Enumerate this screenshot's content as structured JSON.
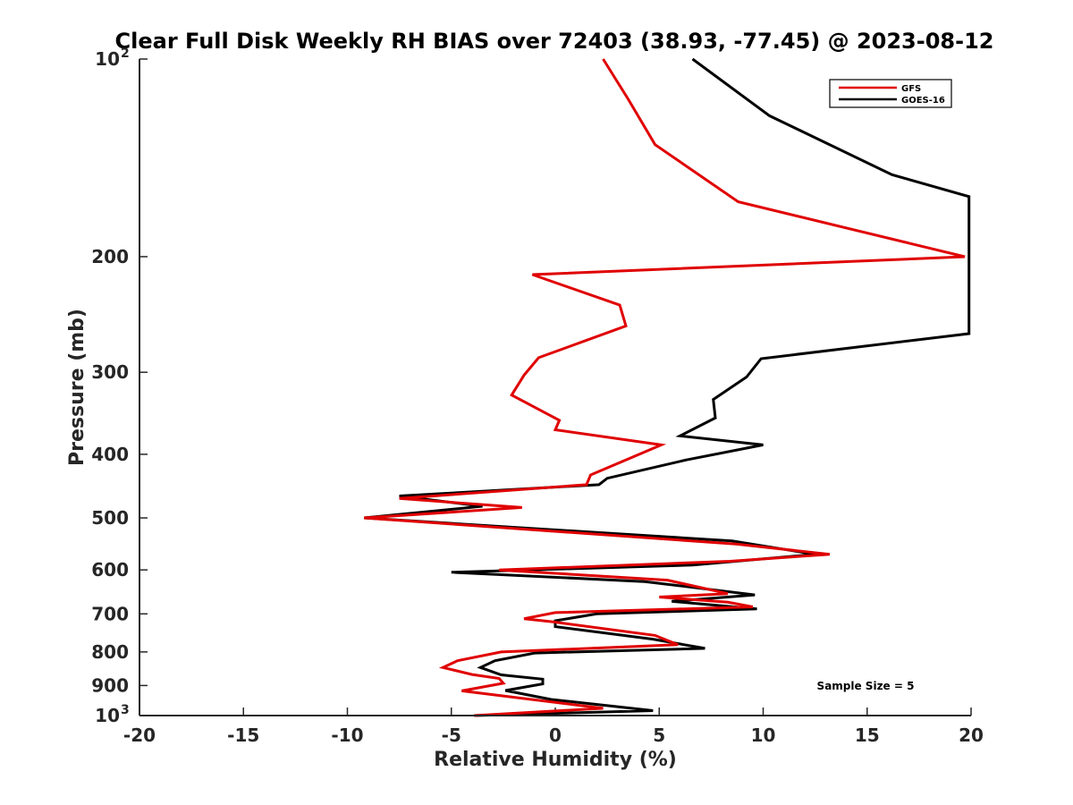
{
  "chart_data": {
    "type": "line",
    "title": "Clear Full Disk Weekly RH BIAS over 72403 (38.93, -77.45) @ 2023-08-12",
    "xlabel": "Relative Humidity (%)",
    "ylabel": "Pressure (mb)",
    "xlim": [
      -20,
      20
    ],
    "ylim": [
      100,
      1000
    ],
    "y_scale": "log",
    "y_reversed": true,
    "x_ticks": [
      "-20",
      "-15",
      "-10",
      "-5",
      "0",
      "5",
      "10",
      "15",
      "20"
    ],
    "y_ticks": [
      {
        "value": 100,
        "base": "10",
        "exp": "2"
      },
      {
        "value": 200,
        "base": "200",
        "exp": ""
      },
      {
        "value": 300,
        "base": "300",
        "exp": ""
      },
      {
        "value": 400,
        "base": "400",
        "exp": ""
      },
      {
        "value": 500,
        "base": "500",
        "exp": ""
      },
      {
        "value": 600,
        "base": "600",
        "exp": ""
      },
      {
        "value": 700,
        "base": "700",
        "exp": ""
      },
      {
        "value": 800,
        "base": "800",
        "exp": ""
      },
      {
        "value": 900,
        "base": "900",
        "exp": ""
      },
      {
        "value": 1000,
        "base": "10",
        "exp": "3"
      }
    ],
    "grid": false,
    "legend_position": "top-right",
    "series": [
      {
        "name": "GFS",
        "color": "#e00000",
        "points": [
          [
            2.3,
            100
          ],
          [
            3.5,
            115
          ],
          [
            4.8,
            135
          ],
          [
            8.8,
            165
          ],
          [
            19.7,
            200
          ],
          [
            -1.1,
            213
          ],
          [
            3.1,
            237
          ],
          [
            3.4,
            255
          ],
          [
            -0.8,
            285
          ],
          [
            -1.5,
            303
          ],
          [
            -2.1,
            325
          ],
          [
            0.2,
            355
          ],
          [
            0.0,
            367
          ],
          [
            5.1,
            387
          ],
          [
            1.7,
            430
          ],
          [
            1.5,
            445
          ],
          [
            -7.5,
            467
          ],
          [
            -1.6,
            482
          ],
          [
            -9.2,
            500
          ],
          [
            8.7,
            548
          ],
          [
            13.2,
            568
          ],
          [
            8.4,
            582
          ],
          [
            -2.7,
            600
          ],
          [
            5.4,
            622
          ],
          [
            8.3,
            652
          ],
          [
            5.0,
            660
          ],
          [
            8.3,
            672
          ],
          [
            9.5,
            683
          ],
          [
            0.0,
            697
          ],
          [
            -1.5,
            712
          ],
          [
            -0.1,
            720
          ],
          [
            4.8,
            755
          ],
          [
            5.9,
            780
          ],
          [
            -2.6,
            800
          ],
          [
            -4.7,
            825
          ],
          [
            -5.4,
            845
          ],
          [
            -4.0,
            866
          ],
          [
            -2.7,
            878
          ],
          [
            -2.5,
            893
          ],
          [
            -4.5,
            917
          ],
          [
            2.3,
            975
          ],
          [
            -3.9,
            1000
          ]
        ]
      },
      {
        "name": "GOES-16",
        "color": "#000000",
        "points": [
          [
            6.6,
            100
          ],
          [
            10.3,
            122
          ],
          [
            16.2,
            150
          ],
          [
            19.9,
            162
          ],
          [
            19.9,
            262
          ],
          [
            9.9,
            286
          ],
          [
            9.2,
            305
          ],
          [
            7.6,
            330
          ],
          [
            7.7,
            352
          ],
          [
            6.0,
            375
          ],
          [
            10.0,
            387
          ],
          [
            6.3,
            408
          ],
          [
            2.5,
            435
          ],
          [
            2.1,
            445
          ],
          [
            -7.5,
            463
          ],
          [
            -3.5,
            480
          ],
          [
            -9.2,
            500
          ],
          [
            8.5,
            542
          ],
          [
            12.5,
            568
          ],
          [
            6.6,
            590
          ],
          [
            -5.0,
            605
          ],
          [
            4.3,
            625
          ],
          [
            9.6,
            655
          ],
          [
            5.6,
            670
          ],
          [
            9.7,
            688
          ],
          [
            2.0,
            700
          ],
          [
            0.0,
            717
          ],
          [
            0.0,
            732
          ],
          [
            4.7,
            765
          ],
          [
            7.2,
            790
          ],
          [
            -1.0,
            803
          ],
          [
            -2.9,
            825
          ],
          [
            -3.6,
            845
          ],
          [
            -2.6,
            867
          ],
          [
            -0.6,
            880
          ],
          [
            -0.6,
            895
          ],
          [
            -2.4,
            916
          ],
          [
            -0.2,
            945
          ],
          [
            2.8,
            968
          ],
          [
            4.7,
            983
          ],
          [
            -3.9,
            1000
          ]
        ]
      }
    ],
    "annotations": {
      "sample_size": "Sample Size = 5"
    }
  }
}
